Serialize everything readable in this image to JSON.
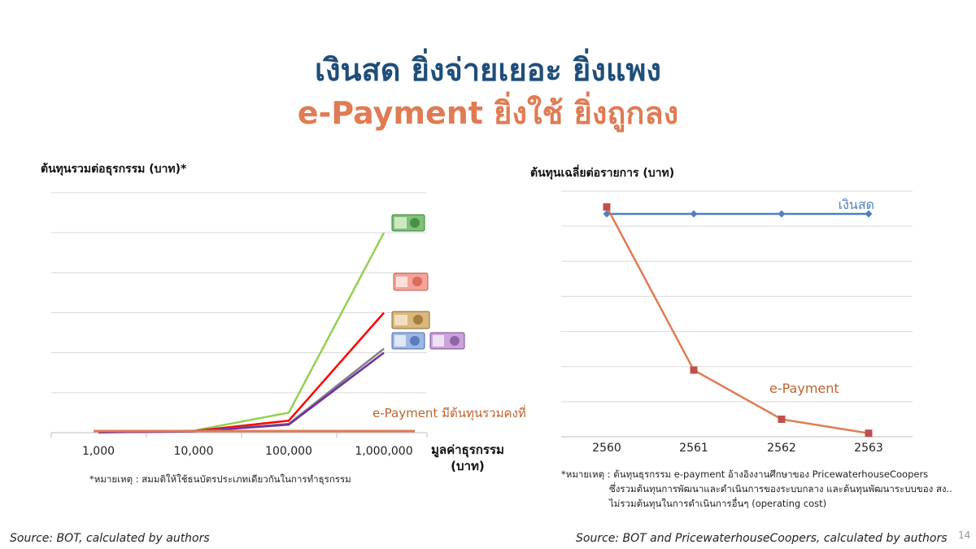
{
  "slide": {
    "title_line1": "เงินสด ยิ่งจ่ายเยอะ ยิ่งแพง",
    "title_line2": "e-Payment ยิ่งใช้ ยิ่งถูกลง",
    "page_number": "14",
    "colors": {
      "title_blue": "#1f4e79",
      "title_orange": "#e07b54"
    }
  },
  "left_panel": {
    "heading": "ต้นทุนรวมต่อธุรกรรม (บาท)*",
    "note": "*หมายเหตุ : สมมติให้ใช้ธนบัตรประเภทเดียวกันในการทำธุรกรรม",
    "source": "Source: BOT, calculated by authors",
    "epayment_annotation": "e-Payment มีต้นทุนรวมคงที่",
    "banknote_icons": [
      "banknote-1000-green",
      "banknote-500-red",
      "banknote-100-brown",
      "banknote-50-blue",
      "banknote-20-purple"
    ]
  },
  "right_panel": {
    "heading": "ต้นทุนเฉลี่ยต่อรายการ (บาท)",
    "note_lines": [
      "*หมายเหตุ : ต้นทุนธุรกรรม e-payment อ้างอิงงานศึกษาของ PricewaterhouseCoopers",
      "ซึ่งรวมต้นทุนการพัฒนาและดำเนินการของระบบกลาง และต้นทุนพัฒนาระบบของ สง..",
      "ไม่รวมต้นทุนในการดำเนินการอื่นๆ (operating cost)"
    ],
    "source": "Source: BOT and PricewaterhouseCoopers, calculated by authors"
  },
  "chart_data": [
    {
      "type": "line",
      "title": "ต้นทุนรวมต่อธุรกรรม (บาท)*",
      "xlabel": "มูลค่าธุรกรรม (บาท)",
      "ylabel": "",
      "x": [
        "1,000",
        "10,000",
        "100,000",
        "1,000,000"
      ],
      "y_axis_labels": false,
      "ylim": [
        0,
        6
      ],
      "grid": true,
      "series": [
        {
          "color": "#92d050",
          "values": [
            0.01,
            0.05,
            0.5,
            5.0
          ]
        },
        {
          "color": "#ff0000",
          "values": [
            0.01,
            0.04,
            0.3,
            3.0
          ]
        },
        {
          "color": "#808080",
          "values": [
            0.01,
            0.03,
            0.22,
            2.1
          ]
        },
        {
          "color": "#7030a0",
          "values": [
            0.01,
            0.03,
            0.2,
            2.0
          ]
        },
        {
          "name": "e-Payment",
          "color": "#e07b54",
          "values": [
            0.04,
            0.04,
            0.04,
            0.04
          ]
        }
      ]
    },
    {
      "type": "line",
      "title": "ต้นทุนเฉลี่ยต่อรายการ (บาท)",
      "xlabel": "",
      "ylabel": "",
      "x": [
        "2560",
        "2561",
        "2562",
        "2563"
      ],
      "y_axis_labels": false,
      "ylim": [
        0,
        7
      ],
      "grid": true,
      "series": [
        {
          "name": "เงินสด",
          "color": "#4f81bd",
          "marker": "diamond",
          "values": [
            6.35,
            6.35,
            6.35,
            6.35
          ]
        },
        {
          "name": "e-Payment",
          "color": "#e07b54",
          "marker": "square",
          "values": [
            6.55,
            1.9,
            0.5,
            0.1
          ]
        }
      ]
    }
  ]
}
